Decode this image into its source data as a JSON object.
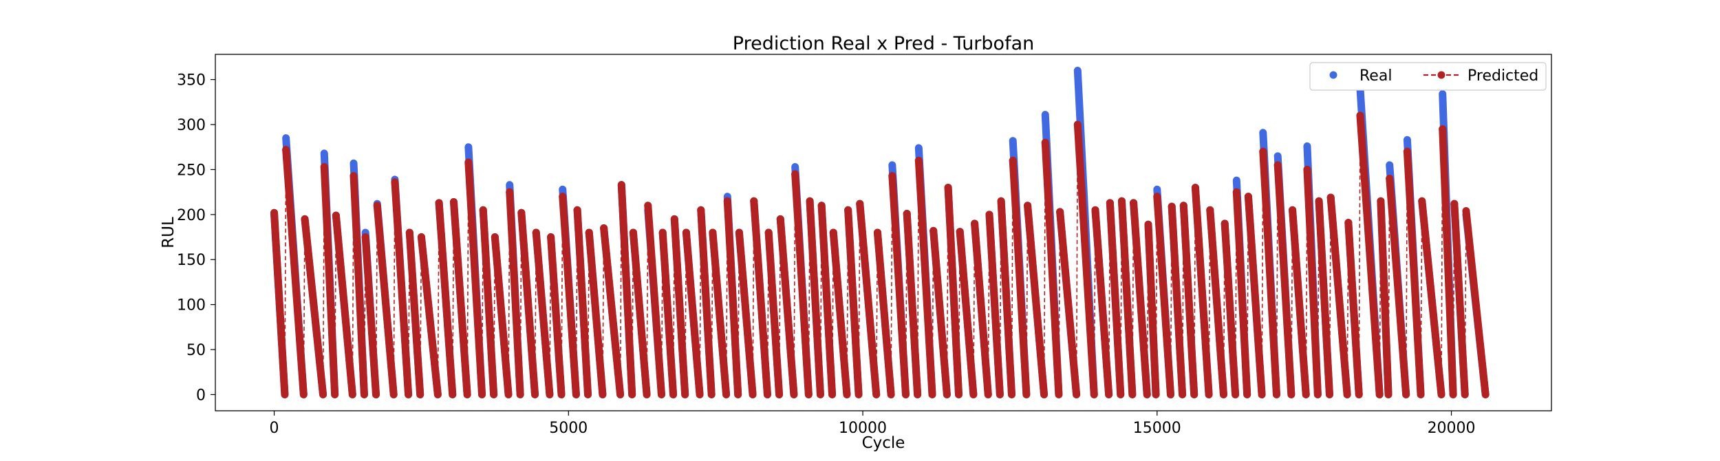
{
  "chart_data": {
    "type": "line",
    "title": "Prediction Real x Pred - Turbofan",
    "xlabel": "Cycle",
    "ylabel": "RUL",
    "xlim": [
      -1000,
      21700
    ],
    "ylim": [
      -18,
      378
    ],
    "xticks": [
      0,
      5000,
      10000,
      15000,
      20000
    ],
    "yticks": [
      0,
      50,
      100,
      150,
      200,
      250,
      300,
      350
    ],
    "grid": false,
    "legend_position": "top-right",
    "series": [
      {
        "name": "Real",
        "style": "markers",
        "color": "#4169e1",
        "description": "true RUL, sawtooth per engine unit",
        "peaks_x": [
          0,
          200,
          520,
          850,
          1050,
          1350,
          1550,
          1750,
          2050,
          2300,
          2500,
          2800,
          3050,
          3300,
          3550,
          3750,
          4000,
          4200,
          4450,
          4700,
          4900,
          5150,
          5350,
          5600,
          5900,
          6100,
          6350,
          6600,
          6800,
          7000,
          7250,
          7450,
          7700,
          7900,
          8150,
          8400,
          8600,
          8850,
          9100,
          9300,
          9500,
          9750,
          9950,
          10250,
          10500,
          10750,
          10950,
          11200,
          11450,
          11650,
          11900,
          12150,
          12350,
          12550,
          12800,
          13100,
          13350,
          13650,
          13950,
          14200,
          14400,
          14600,
          14850,
          15000,
          15250,
          15450,
          15650,
          15900,
          16150,
          16350,
          16550,
          16800,
          17050,
          17300,
          17550,
          17750,
          17950,
          18250,
          18450,
          18800,
          18950,
          19250,
          19500,
          19850,
          20050,
          20250
        ],
        "values": [
          200,
          285,
          195,
          268,
          199,
          257,
          180,
          212,
          239,
          180,
          175,
          213,
          214,
          275,
          205,
          175,
          233,
          202,
          180,
          175,
          228,
          205,
          180,
          185,
          233,
          180,
          205,
          180,
          195,
          180,
          205,
          180,
          220,
          180,
          215,
          180,
          195,
          253,
          215,
          210,
          180,
          205,
          212,
          180,
          255,
          201,
          274,
          182,
          230,
          181,
          190,
          200,
          215,
          282,
          210,
          311,
          203,
          360,
          205,
          213,
          215,
          213,
          189,
          228,
          209,
          210,
          230,
          205,
          190,
          238,
          220,
          291,
          265,
          205,
          276,
          215,
          219,
          191,
          340,
          215,
          255,
          283,
          215,
          334,
          212,
          200
        ]
      },
      {
        "name": "Predicted",
        "style": "dashed-line-markers",
        "color": "#b22222",
        "description": "predicted RUL, sawtooth per engine unit",
        "peaks_x": [
          0,
          200,
          520,
          850,
          1050,
          1350,
          1550,
          1750,
          2050,
          2300,
          2500,
          2800,
          3050,
          3300,
          3550,
          3750,
          4000,
          4200,
          4450,
          4700,
          4900,
          5150,
          5350,
          5600,
          5900,
          6100,
          6350,
          6600,
          6800,
          7000,
          7250,
          7450,
          7700,
          7900,
          8150,
          8400,
          8600,
          8850,
          9100,
          9300,
          9500,
          9750,
          9950,
          10250,
          10500,
          10750,
          10950,
          11200,
          11450,
          11650,
          11900,
          12150,
          12350,
          12550,
          12800,
          13100,
          13350,
          13650,
          13950,
          14200,
          14400,
          14600,
          14850,
          15000,
          15250,
          15450,
          15650,
          15900,
          16150,
          16350,
          16550,
          16800,
          17050,
          17300,
          17550,
          17750,
          17950,
          18250,
          18450,
          18800,
          18950,
          19250,
          19500,
          19850,
          20050,
          20250
        ],
        "values": [
          202,
          272,
          195,
          253,
          199,
          243,
          175,
          210,
          236,
          180,
          175,
          213,
          214,
          258,
          205,
          175,
          225,
          202,
          180,
          175,
          220,
          205,
          180,
          185,
          233,
          180,
          210,
          180,
          195,
          180,
          205,
          180,
          215,
          180,
          215,
          180,
          195,
          245,
          215,
          210,
          180,
          205,
          212,
          180,
          243,
          201,
          260,
          182,
          230,
          181,
          190,
          200,
          215,
          260,
          210,
          280,
          203,
          300,
          205,
          213,
          215,
          213,
          189,
          220,
          209,
          210,
          230,
          205,
          190,
          225,
          220,
          270,
          255,
          205,
          250,
          215,
          219,
          191,
          310,
          215,
          240,
          270,
          215,
          295,
          212,
          204
        ]
      }
    ]
  }
}
